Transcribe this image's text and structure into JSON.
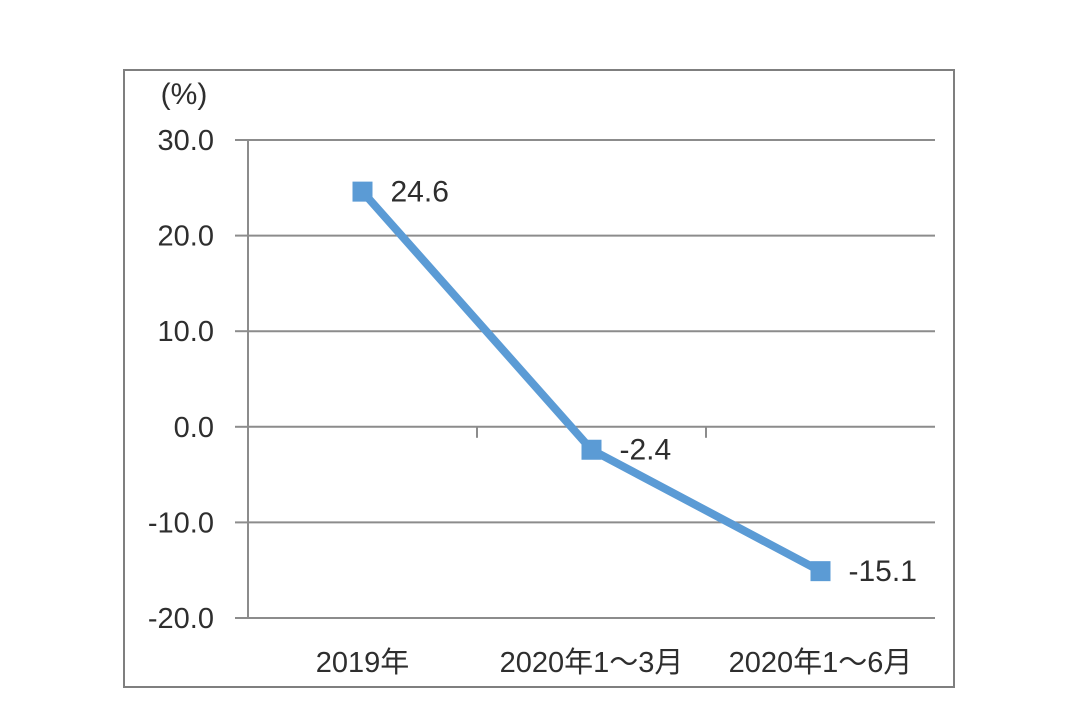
{
  "chart_data": {
    "type": "line",
    "title": "",
    "ylabel": "(%)",
    "xlabel": "",
    "categories": [
      "2019年",
      "2020年1～3月",
      "2020年1～6月"
    ],
    "values": [
      24.6,
      -2.4,
      -15.1
    ],
    "data_labels": [
      "24.6",
      "-2.4",
      "-15.1"
    ],
    "yticks": [
      30,
      20,
      10,
      0,
      -10,
      -20
    ],
    "ytick_labels": [
      "30.0",
      "20.0",
      "10.0",
      "0.0",
      "-10.0",
      "-20.0"
    ],
    "ylim": [
      -20,
      30
    ],
    "grid": true,
    "legend": "none",
    "marker": "square",
    "colors": {
      "line": "#5b9bd5",
      "marker": "#5b9bd5",
      "gridline": "#8c8c8c",
      "axis": "#8c8c8c",
      "frame_border": "#7f7f7f",
      "text": "#2e2e2e",
      "background": "#ffffff"
    }
  }
}
